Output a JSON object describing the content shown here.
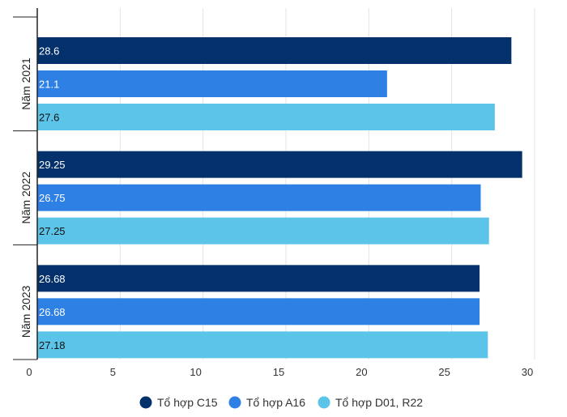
{
  "chart_data": {
    "type": "bar",
    "orientation": "horizontal",
    "categories": [
      "Năm 2021",
      "Năm 2022",
      "Năm 2023"
    ],
    "series": [
      {
        "name": "Tổ hợp C15",
        "values": [
          28.6,
          29.25,
          26.68
        ],
        "labels": [
          "28.6",
          "29.25",
          "26.68"
        ],
        "color": "#04316c",
        "label_color": "#ffffff"
      },
      {
        "name": "Tổ hợp A16",
        "values": [
          21.1,
          26.75,
          26.68
        ],
        "labels": [
          "21.1",
          "26.75",
          "26.68"
        ],
        "color": "#2f80e4",
        "label_color": "#ffffff"
      },
      {
        "name": "Tổ hợp D01, R22",
        "values": [
          27.6,
          27.25,
          27.18
        ],
        "labels": [
          "27.6",
          "27.25",
          "27.18"
        ],
        "color": "#5cc4e8",
        "label_color": "#111111"
      }
    ],
    "xlim": [
      0,
      30
    ],
    "x_ticks": [
      "0",
      "5",
      "10",
      "15",
      "20",
      "25",
      "30"
    ],
    "grid": true,
    "legend_position": "bottom-center"
  }
}
